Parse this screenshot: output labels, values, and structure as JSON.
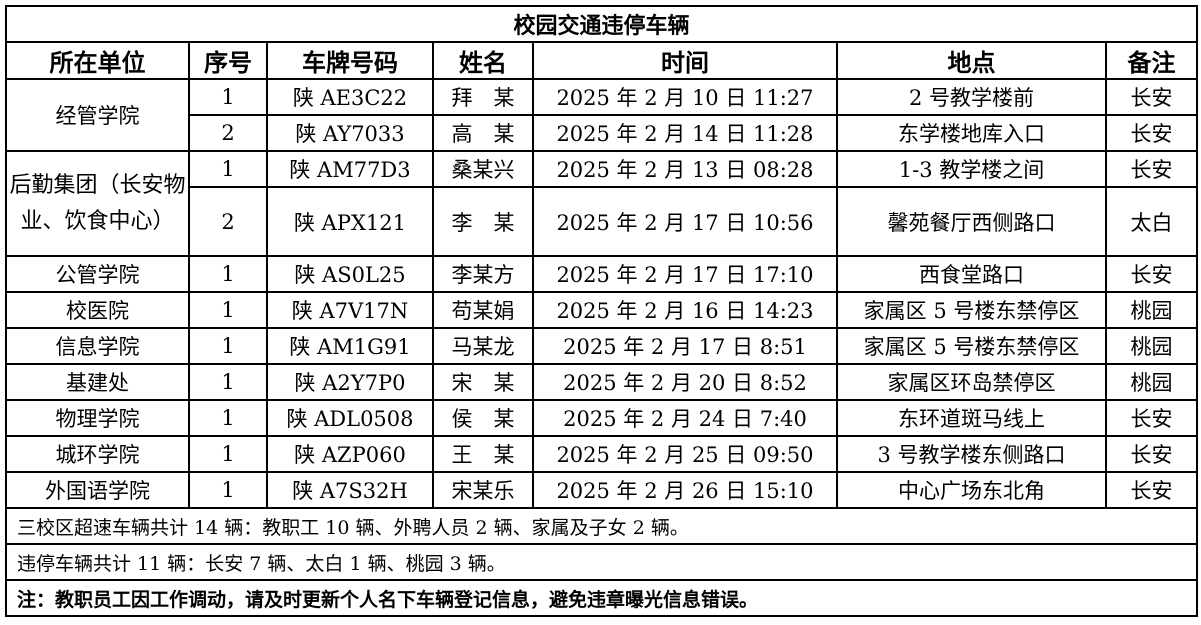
{
  "title": "校园交通违停车辆",
  "headers": [
    "所在单位",
    "序号",
    "车牌号码",
    "姓名",
    "时间",
    "地点",
    "备注"
  ],
  "groups": [
    "经管学院",
    "后勤集团（长安物业、饮食中心）"
  ],
  "rows": [
    [
      "经管学院",
      "1",
      "陕 AE3C22",
      "拜　某",
      "2025 年 2 月 10 日  11:27",
      "2 号教学楼前",
      "长安"
    ],
    [
      "",
      "2",
      "陕 AY7033",
      "高　某",
      "2025 年 2 月 14 日  11:28",
      "东学楼地库入口",
      "长安"
    ],
    [
      "后勤集团（长安物业、饮食中心）",
      "1",
      "陕 AM77D3",
      "桑某兴",
      "2025 年 2 月 13 日  08:28",
      "1-3 教学楼之间",
      "长安"
    ],
    [
      "",
      "2",
      "陕 APX121",
      "李　某",
      "2025 年 2 月 17 日 10:56",
      "馨苑餐厅西侧路口",
      "太白"
    ],
    [
      "公管学院",
      "1",
      "陕 AS0L25",
      "李某方",
      "2025 年 2 月 17 日  17:10",
      "西食堂路口",
      "长安"
    ],
    [
      "校医院",
      "1",
      "陕 A7V17N",
      "苟某娟",
      "2025 年 2 月 16 日 14:23",
      "家属区 5 号楼东禁停区",
      "桃园"
    ],
    [
      "信息学院",
      "1",
      "陕 AM1G91",
      "马某龙",
      "2025 年 2 月 17 日 8:51",
      "家属区 5 号楼东禁停区",
      "桃园"
    ],
    [
      "基建处",
      "1",
      "陕 A2Y7P0",
      "宋　某",
      "2025 年 2 月 20 日 8:52",
      "家属区环岛禁停区",
      "桃园"
    ],
    [
      "物理学院",
      "1",
      "陕 ADL0508",
      "侯　某",
      "2025 年 2 月 24 日  7:40",
      "东环道斑马线上",
      "长安"
    ],
    [
      "城环学院",
      "1",
      "陕 AZP060",
      "王　某",
      "2025 年 2 月 25 日  09:50",
      "3 号教学楼东侧路口",
      "长安"
    ],
    [
      "外国语学院",
      "1",
      "陕 A7S32H",
      "宋某乐",
      "2025 年 2 月 26 日  15:10",
      "中心广场东北角",
      "长安"
    ]
  ],
  "notes": [
    "三校区超速车辆共计 14 辆：教职工 10 辆、外聘人员 2 辆、家属及子女 2 辆。",
    "违停车辆共计 11 辆：长安  7 辆、太白  1 辆、桃园  3 辆。",
    "注：教职员工因工作调动，请及时更新个人名下车辆登记信息，避免违章曝光信息错误。"
  ]
}
